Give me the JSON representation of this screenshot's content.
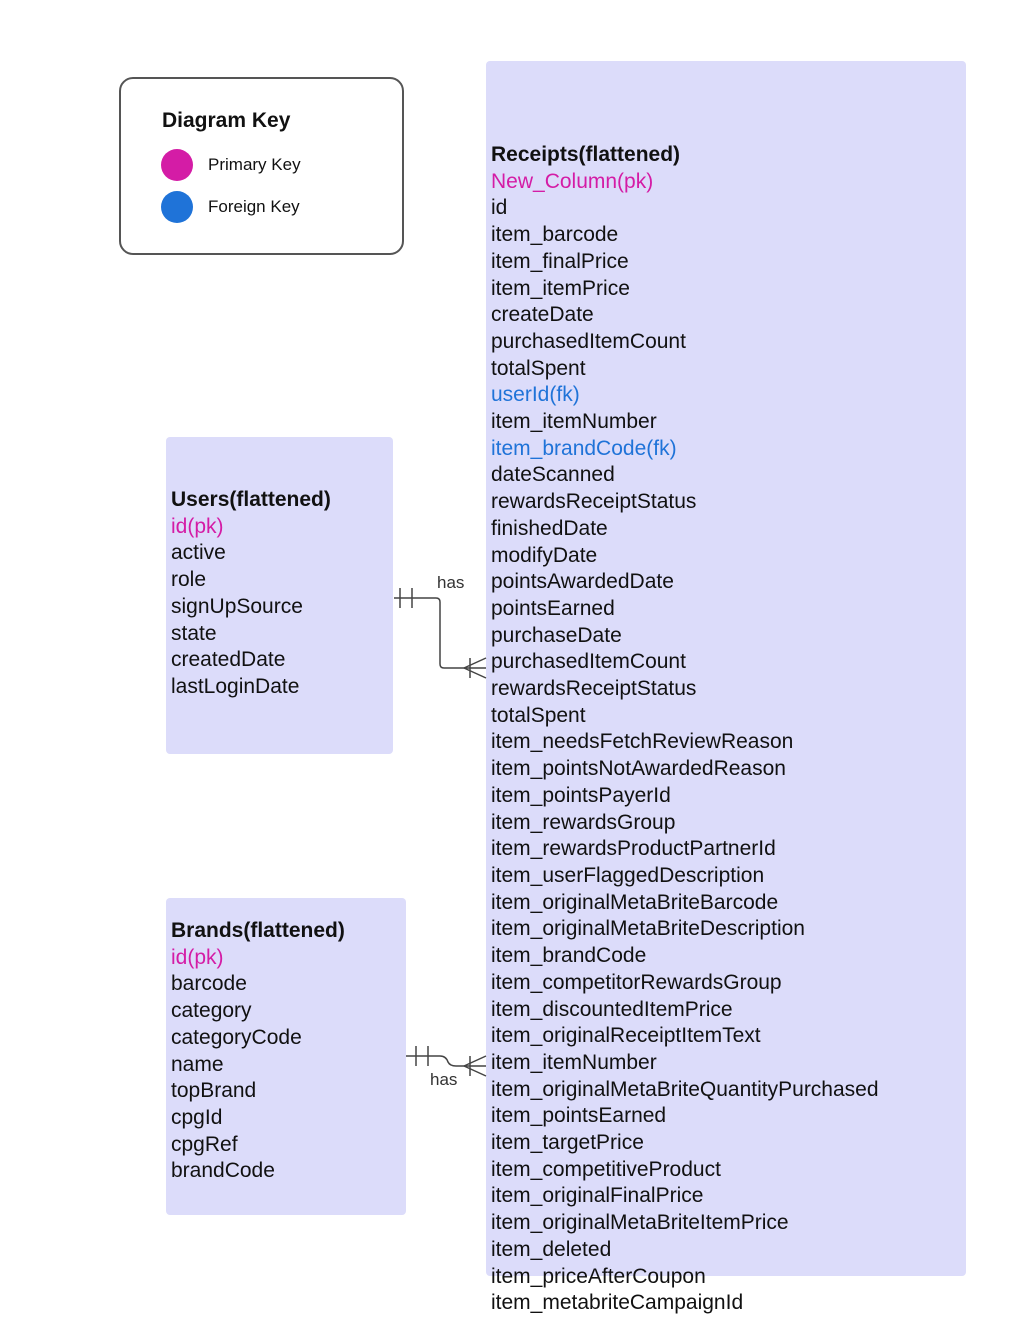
{
  "key": {
    "title": "Diagram Key",
    "primary_label": "Primary Key",
    "foreign_label": "Foreign Key",
    "primary_color": "#d41ca6",
    "foreign_color": "#1f73d8"
  },
  "entities": {
    "receipts": {
      "title": "Receipts(flattened)",
      "fields": [
        {
          "name": "New_Column(pk)",
          "type": "pk"
        },
        {
          "name": "id",
          "type": ""
        },
        {
          "name": "item_barcode",
          "type": ""
        },
        {
          "name": "item_finalPrice",
          "type": ""
        },
        {
          "name": "item_itemPrice",
          "type": ""
        },
        {
          "name": "createDate",
          "type": ""
        },
        {
          "name": "purchasedItemCount",
          "type": ""
        },
        {
          "name": "totalSpent",
          "type": ""
        },
        {
          "name": "userId(fk)",
          "type": "fk"
        },
        {
          "name": "item_itemNumber",
          "type": ""
        },
        {
          "name": "item_brandCode(fk)",
          "type": "fk"
        },
        {
          "name": "dateScanned",
          "type": ""
        },
        {
          "name": "rewardsReceiptStatus",
          "type": ""
        },
        {
          "name": "finishedDate",
          "type": ""
        },
        {
          "name": "modifyDate",
          "type": ""
        },
        {
          "name": "pointsAwardedDate",
          "type": ""
        },
        {
          "name": "pointsEarned",
          "type": ""
        },
        {
          "name": "purchaseDate",
          "type": ""
        },
        {
          "name": "purchasedItemCount",
          "type": ""
        },
        {
          "name": "rewardsReceiptStatus",
          "type": ""
        },
        {
          "name": "totalSpent",
          "type": ""
        },
        {
          "name": "item_needsFetchReviewReason",
          "type": ""
        },
        {
          "name": "item_pointsNotAwardedReason",
          "type": ""
        },
        {
          "name": "item_pointsPayerId",
          "type": ""
        },
        {
          "name": "item_rewardsGroup",
          "type": ""
        },
        {
          "name": "item_rewardsProductPartnerId",
          "type": ""
        },
        {
          "name": "item_userFlaggedDescription",
          "type": ""
        },
        {
          "name": "item_originalMetaBriteBarcode",
          "type": ""
        },
        {
          "name": "item_originalMetaBriteDescription",
          "type": ""
        },
        {
          "name": "item_brandCode",
          "type": ""
        },
        {
          "name": "item_competitorRewardsGroup",
          "type": ""
        },
        {
          "name": "item_discountedItemPrice",
          "type": ""
        },
        {
          "name": "item_originalReceiptItemText",
          "type": ""
        },
        {
          "name": "item_itemNumber",
          "type": ""
        },
        {
          "name": "item_originalMetaBriteQuantityPurchased",
          "type": ""
        },
        {
          "name": "item_pointsEarned",
          "type": ""
        },
        {
          "name": "item_targetPrice",
          "type": ""
        },
        {
          "name": "item_competitiveProduct",
          "type": ""
        },
        {
          "name": "item_originalFinalPrice",
          "type": ""
        },
        {
          "name": "item_originalMetaBriteItemPrice",
          "type": ""
        },
        {
          "name": "item_deleted",
          "type": ""
        },
        {
          "name": "item_priceAfterCoupon",
          "type": ""
        },
        {
          "name": "item_metabriteCampaignId",
          "type": ""
        }
      ]
    },
    "users": {
      "title": "Users(flattened)",
      "fields": [
        {
          "name": "id(pk)",
          "type": "pk"
        },
        {
          "name": "active",
          "type": ""
        },
        {
          "name": "role",
          "type": ""
        },
        {
          "name": "signUpSource",
          "type": ""
        },
        {
          "name": "state",
          "type": ""
        },
        {
          "name": "createdDate",
          "type": ""
        },
        {
          "name": "lastLoginDate",
          "type": ""
        }
      ]
    },
    "brands": {
      "title": "Brands(flattened)",
      "fields": [
        {
          "name": "id(pk)",
          "type": "pk"
        },
        {
          "name": "barcode",
          "type": ""
        },
        {
          "name": "category",
          "type": ""
        },
        {
          "name": "categoryCode",
          "type": ""
        },
        {
          "name": "name",
          "type": ""
        },
        {
          "name": "topBrand",
          "type": ""
        },
        {
          "name": "cpgId",
          "type": ""
        },
        {
          "name": "cpgRef",
          "type": ""
        },
        {
          "name": "brandCode",
          "type": ""
        }
      ]
    }
  },
  "relationships": [
    {
      "from": "Users(flattened)",
      "to": "Receipts(flattened)",
      "label": "has",
      "cardinality": "one-to-many"
    },
    {
      "from": "Brands(flattened)",
      "to": "Receipts(flattened)",
      "label": "has",
      "cardinality": "one-to-many"
    }
  ]
}
